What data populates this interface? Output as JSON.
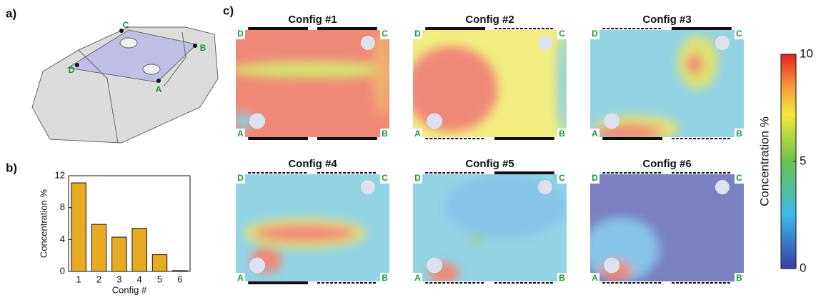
{
  "panel_labels": [
    "a)",
    "b)",
    "c)"
  ],
  "car_points": [
    "A",
    "B",
    "C",
    "D"
  ],
  "corner_labels": [
    "A",
    "B",
    "C",
    "D"
  ],
  "configs": [
    {
      "title": "Config #1"
    },
    {
      "title": "Config #2"
    },
    {
      "title": "Config #3"
    },
    {
      "title": "Config #4"
    },
    {
      "title": "Config #5"
    },
    {
      "title": "Config #6"
    }
  ],
  "chart_data": [
    {
      "type": "bar",
      "categories": [
        "1",
        "2",
        "3",
        "4",
        "5",
        "6"
      ],
      "values": [
        11.1,
        5.9,
        4.3,
        5.4,
        2.1,
        0.1
      ],
      "color": "#e8aa22",
      "ylim": [
        0,
        12
      ],
      "yticks": [
        0,
        4,
        8,
        12
      ],
      "xlabel": "Config #",
      "ylabel": "Concentration %"
    },
    {
      "type": "colorbar",
      "ylim": [
        0,
        10
      ],
      "yticks": [
        0,
        5,
        10
      ],
      "label": "Concentration %"
    }
  ]
}
